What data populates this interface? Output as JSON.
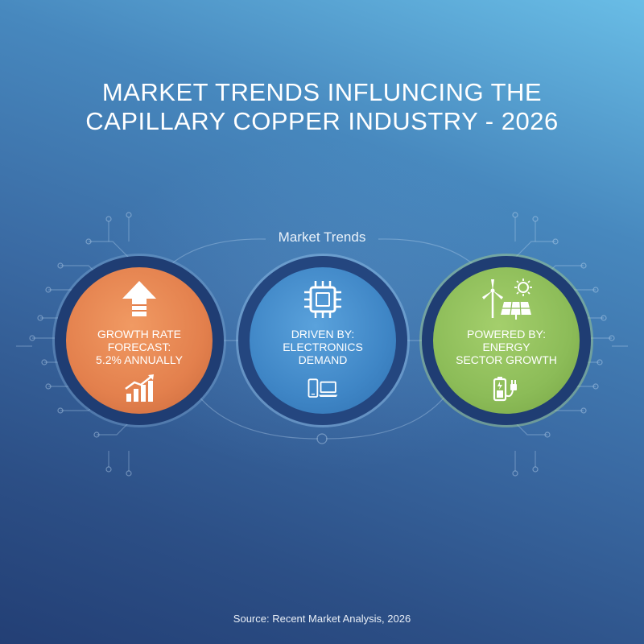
{
  "title": {
    "line1": "MARKET TRENDS INFLUNCING THE",
    "line2": "CAPILLARY COPPER INDUSTRY - 2026"
  },
  "diagram": {
    "center_label": "Market Trends",
    "nodes": [
      {
        "lines": [
          "GROWTH RATE",
          "FORECAST:",
          "5.2% ANNUALLY"
        ],
        "top_icon": "up-arrow-icon",
        "bottom_icon": "bar-chart-rising-icon",
        "color": "#e5834f",
        "ring_color": "#2f4d86"
      },
      {
        "lines": [
          "DRIVEN BY:",
          "ELECTRONICS",
          "DEMAND"
        ],
        "top_icon": "microchip-icon",
        "bottom_icon": "phone-laptop-icon",
        "color": "#3f86c6",
        "ring_color": "#28508f"
      },
      {
        "lines": [
          "POWERED BY:",
          "ENERGY",
          "SECTOR GROWTH"
        ],
        "top_icon": "wind-solar-icon",
        "bottom_icon": "battery-plug-icon",
        "color": "#8cbc58",
        "ring_color": "#2b4f87"
      }
    ]
  },
  "source": "Source: Recent Market Analysis, 2026"
}
